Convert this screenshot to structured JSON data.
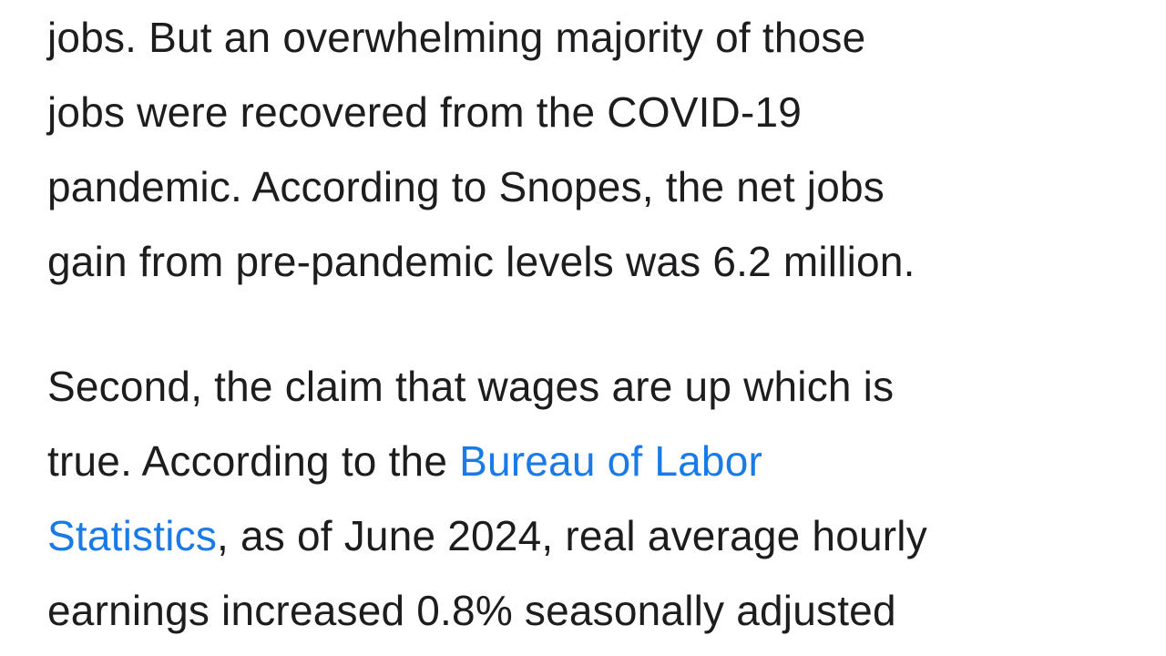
{
  "paragraph_1": {
    "lines": [
      "jobs. But an overwhelming majority of those",
      "jobs were recovered from the COVID-19",
      "pandemic. According to Snopes, the net jobs",
      "gain from pre-pandemic levels was 6.2 million."
    ]
  },
  "paragraph_2": {
    "line_1": "Second, the claim that wages are up which is",
    "line_2_prefix": "true. According to the ",
    "link_part_1": "Bureau of Labor",
    "link_part_2": "Statistics",
    "line_3_suffix": ", as of June 2024, real average hourly",
    "line_4": "earnings increased 0.8% seasonally adjusted"
  },
  "colors": {
    "text": "#1d1d1f",
    "link": "#1a7ae6",
    "background": "#ffffff"
  }
}
